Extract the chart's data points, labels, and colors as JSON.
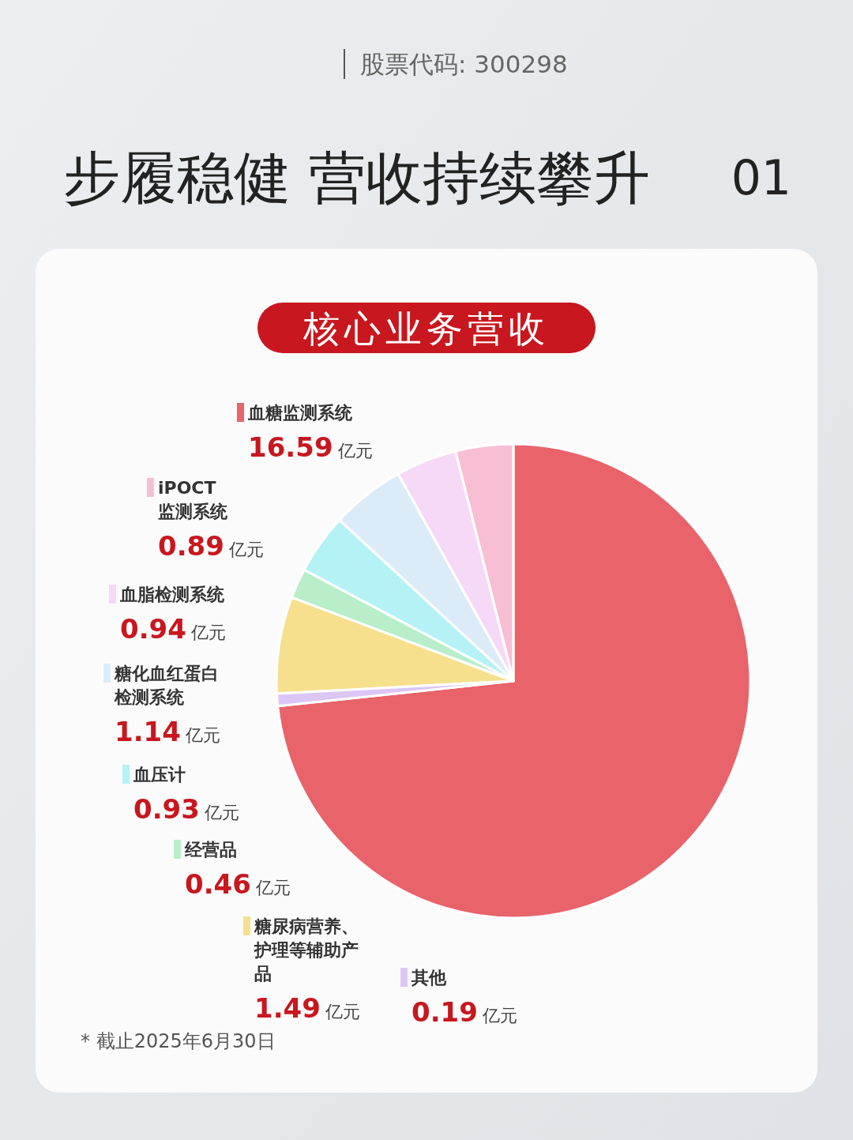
{
  "chart_data": {
    "type": "pie",
    "title": "步履稳健 营收持续攀升",
    "subtitle": "核心业务营收",
    "categories": [
      "血糖监测系统",
      "iPOCT监测系统",
      "血脂检测系统",
      "糖化血红蛋白检测系统",
      "血压计",
      "经营品",
      "糖尿病营养、护理等辅助产品",
      "其他"
    ],
    "values": [
      16.59,
      0.89,
      0.94,
      1.14,
      0.93,
      0.46,
      1.49,
      0.19
    ],
    "colors": [
      "#e9636a",
      "#f8bfd4",
      "#f6d9f6",
      "#dcebf8",
      "#b4f2f6",
      "#b8eec9",
      "#f6e08e",
      "#dcc6f6"
    ],
    "value_labels": [
      "16.59 亿元",
      "0.89 亿元",
      "0.94 亿元",
      "1.14 亿元",
      "0.93 亿元",
      "0.46 亿元",
      "1.49 亿元",
      "0.19 亿元"
    ],
    "annotations": [
      "股票代码: 300298",
      "01",
      "* 截止2025年6月30日"
    ],
    "legend": "left"
  }
}
